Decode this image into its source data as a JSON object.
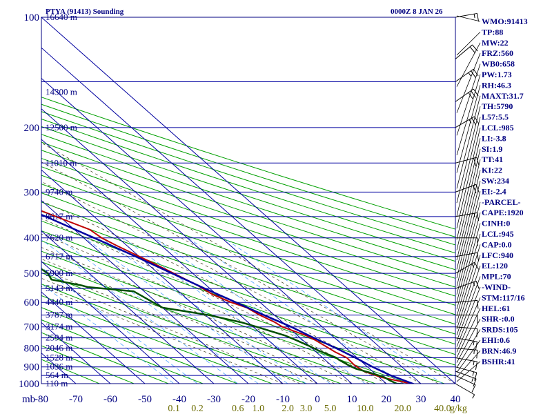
{
  "chart_data": {
    "type": "line",
    "title": "PTYA (91413) Sounding",
    "subtitle": "0000Z  8 JAN 26",
    "pressure_unit_label": "mb",
    "pressure_ticks": [
      100,
      200,
      300,
      400,
      500,
      600,
      700,
      800,
      900,
      1000
    ],
    "pressure_ylim": [
      100,
      1000
    ],
    "temp_ticks": [
      -80,
      -70,
      -60,
      -50,
      -40,
      -30,
      -20,
      -10,
      0,
      10,
      20,
      30,
      40
    ],
    "temp_tick_labels": [
      "-80",
      "-70",
      "-60",
      "-50",
      "-40",
      "-30",
      "-20",
      "-10",
      "0",
      "10",
      "20",
      "30",
      "40"
    ],
    "mixing_ratio_labels": [
      {
        "text": "0.1",
        "x": 0.1
      },
      {
        "text": "0.2",
        "x": 0.2
      },
      {
        "text": "0.6",
        "x": 0.6
      },
      {
        "text": "1.0",
        "x": 1.0
      },
      {
        "text": "2.0",
        "x": 2.0
      },
      {
        "text": "3.0",
        "x": 3.0
      },
      {
        "text": "5.0",
        "x": 5.0
      },
      {
        "text": "10.0",
        "x": 10.0
      },
      {
        "text": "20.0",
        "x": 20.0
      },
      {
        "text": "40.0",
        "x": 40.0
      }
    ],
    "mixing_ratio_unit": "g/kg",
    "height_labels": [
      {
        "p": 100,
        "text": "16640 m"
      },
      {
        "p": 160,
        "text": "14300 m"
      },
      {
        "p": 200,
        "text": "12500 m"
      },
      {
        "p": 250,
        "text": "11010 m"
      },
      {
        "p": 300,
        "text": "9740 m"
      },
      {
        "p": 350,
        "text": "8617 m"
      },
      {
        "p": 400,
        "text": "7620 m"
      },
      {
        "p": 450,
        "text": "6717 m"
      },
      {
        "p": 500,
        "text": "5900 m"
      },
      {
        "p": 550,
        "text": "5143 m"
      },
      {
        "p": 600,
        "text": "4440 m"
      },
      {
        "p": 650,
        "text": "3787 m"
      },
      {
        "p": 700,
        "text": "3174 m"
      },
      {
        "p": 750,
        "text": "2594 m"
      },
      {
        "p": 800,
        "text": "2046 m"
      },
      {
        "p": 850,
        "text": "1528 m"
      },
      {
        "p": 900,
        "text": "1036 m"
      },
      {
        "p": 950,
        "text": "564 m"
      },
      {
        "p": 1000,
        "text": "110 m"
      }
    ],
    "series": [
      {
        "name": "",
        "color": "#c00000",
        "points": [
          [
            1005,
            28
          ],
          [
            960,
            20.5
          ],
          [
            925,
            17.5
          ],
          [
            890,
            16.8
          ],
          [
            850,
            17
          ],
          [
            820,
            15.5
          ],
          [
            790,
            14.6
          ],
          [
            760,
            13.6
          ],
          [
            740,
            12.6
          ],
          [
            700,
            8.4
          ],
          [
            680,
            7.8
          ],
          [
            650,
            5.8
          ],
          [
            620,
            4.4
          ],
          [
            600,
            1.6
          ],
          [
            570,
            -1.2
          ],
          [
            540,
            -2.5
          ],
          [
            500,
            -5.5
          ],
          [
            460,
            -9
          ],
          [
            420,
            -13
          ],
          [
            400,
            -14.8
          ],
          [
            380,
            -15.5
          ],
          [
            350,
            -21
          ],
          [
            320,
            -27
          ],
          [
            300,
            -32
          ],
          [
            260,
            -40
          ],
          [
            230,
            -47
          ],
          [
            200,
            -56
          ],
          [
            180,
            -63
          ],
          [
            170,
            -64
          ],
          [
            150,
            -70
          ],
          [
            130,
            -73
          ],
          [
            110,
            -78
          ],
          [
            100,
            -82
          ]
        ]
      },
      {
        "name": "",
        "color": "#005000",
        "points": [
          [
            1005,
            27
          ],
          [
            1000,
            23
          ],
          [
            980,
            22
          ],
          [
            960,
            21.5
          ],
          [
            930,
            18.5
          ],
          [
            910,
            16
          ],
          [
            890,
            15
          ],
          [
            860,
            14
          ],
          [
            850,
            14
          ],
          [
            830,
            12.5
          ],
          [
            810,
            11
          ],
          [
            790,
            10
          ],
          [
            775,
            9
          ],
          [
            760,
            8
          ],
          [
            740,
            6.5
          ],
          [
            700,
            1
          ],
          [
            680,
            -2
          ],
          [
            650,
            -9
          ],
          [
            620,
            -20
          ],
          [
            600,
            -21
          ],
          [
            560,
            -23
          ],
          [
            545,
            -35
          ],
          [
            540,
            -36
          ],
          [
            520,
            -43
          ],
          [
            500,
            -42
          ],
          [
            470,
            -43
          ],
          [
            450,
            -44
          ],
          [
            400,
            -51
          ],
          [
            370,
            -53
          ],
          [
            350,
            -58
          ],
          [
            320,
            -60
          ],
          [
            300,
            -63
          ],
          [
            280,
            -67
          ],
          [
            265,
            -70
          ],
          [
            250,
            -72
          ],
          [
            235,
            -59
          ],
          [
            225,
            -59
          ],
          [
            210,
            -63
          ],
          [
            200,
            -66
          ],
          [
            180,
            -75
          ],
          [
            170,
            -77
          ],
          [
            150,
            -82
          ],
          [
            140,
            -84
          ],
          [
            120,
            -88
          ],
          [
            110,
            -92
          ],
          [
            100,
            -97
          ]
        ]
      },
      {
        "name": "",
        "color": "#0000a0",
        "points": [
          [
            1005,
            28
          ],
          [
            950,
            24
          ],
          [
            900,
            21.5
          ],
          [
            850,
            19.5
          ],
          [
            800,
            17
          ],
          [
            750,
            14
          ],
          [
            700,
            11
          ],
          [
            650,
            7
          ],
          [
            600,
            3
          ],
          [
            550,
            -1.5
          ],
          [
            500,
            -6
          ],
          [
            450,
            -11
          ],
          [
            400,
            -17
          ],
          [
            350,
            -24
          ],
          [
            300,
            -33
          ],
          [
            250,
            -44
          ],
          [
            200,
            -58
          ],
          [
            170,
            -68
          ],
          [
            150,
            -76
          ],
          [
            130,
            -84
          ],
          [
            110,
            -94
          ],
          [
            100,
            -99
          ]
        ]
      }
    ],
    "wind_barbs": [
      {
        "p": 1000,
        "dir": 120,
        "spd": 5
      },
      {
        "p": 950,
        "dir": 115,
        "spd": 10
      },
      {
        "p": 925,
        "dir": 110,
        "spd": 15
      },
      {
        "p": 900,
        "dir": 105,
        "spd": 15
      },
      {
        "p": 850,
        "dir": 100,
        "spd": 15
      },
      {
        "p": 800,
        "dir": 95,
        "spd": 15
      },
      {
        "p": 750,
        "dir": 100,
        "spd": 15
      },
      {
        "p": 700,
        "dir": 95,
        "spd": 10
      },
      {
        "p": 650,
        "dir": 90,
        "spd": 10
      },
      {
        "p": 600,
        "dir": 85,
        "spd": 10
      },
      {
        "p": 550,
        "dir": 70,
        "spd": 15
      },
      {
        "p": 500,
        "dir": 60,
        "spd": 15
      },
      {
        "p": 450,
        "dir": 80,
        "spd": 10
      },
      {
        "p": 400,
        "dir": 90,
        "spd": 10
      },
      {
        "p": 350,
        "dir": 80,
        "spd": 15
      },
      {
        "p": 300,
        "dir": 70,
        "spd": 20
      },
      {
        "p": 250,
        "dir": 75,
        "spd": 20
      },
      {
        "p": 200,
        "dir": 60,
        "spd": 25
      },
      {
        "p": 170,
        "dir": 55,
        "spd": 30
      },
      {
        "p": 150,
        "dir": 55,
        "spd": 25
      },
      {
        "p": 130,
        "dir": 50,
        "spd": 20
      },
      {
        "p": 100,
        "dir": 80,
        "spd": 15
      }
    ],
    "indices": [
      "WMO:91413",
      "TP:88",
      "MW:22",
      "FRZ:560",
      "WB0:658",
      "PW:1.73",
      "RH:46.3",
      "MAXT:31.7",
      "TH:5790",
      "L57:5.5",
      "LCL:985",
      "LI:-3.8",
      "SI:1.9",
      "TT:41",
      "KI:22",
      "SW:234",
      "EI:-2.4",
      "-PARCEL-",
      "CAPE:1920",
      "CINH:0",
      "LCL:945",
      "CAP:0.0",
      "LFC:940",
      "EL:120",
      "MPL:70",
      "-WIND-",
      "STM:117/16",
      "HEL:61",
      "SHR-:0.0",
      "SRDS:105",
      "EHI:0.6",
      "BRN:46.9",
      "BSHR:41"
    ],
    "colors": {
      "frame": "#000080",
      "isobar": "#0000a0",
      "isotherm": "#0000a0",
      "dry_adiabat": "#00a000",
      "moist_adiabat": "#4a4a2a",
      "mixing_ratio": "#4aa0ff",
      "mixing_ratio_label": "#6b6b00",
      "leader": "#000000"
    }
  }
}
